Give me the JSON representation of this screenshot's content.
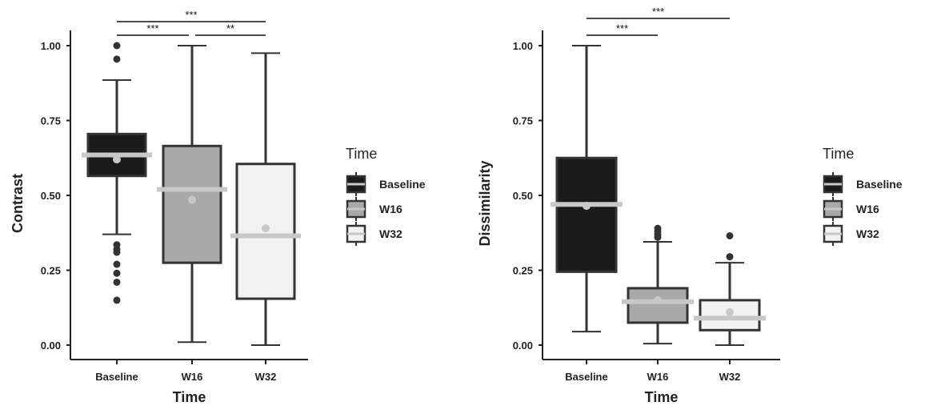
{
  "colors": {
    "Baseline": "#1a1a1a",
    "W16": "#a9a9a9",
    "W32": "#f2f2f2",
    "median_line": "#c8c8c8",
    "mean_dot": "#c8c8c8",
    "whisker": "#333333"
  },
  "chart_data": [
    {
      "type": "box",
      "xlabel": "Time",
      "ylabel": "Contrast",
      "ylim": [
        0,
        1
      ],
      "y_ticks": [
        "0.00",
        "0.25",
        "0.50",
        "0.75",
        "1.00"
      ],
      "y_tick_values": [
        0,
        0.25,
        0.5,
        0.75,
        1.0
      ],
      "categories": [
        "Baseline",
        "W16",
        "W32"
      ],
      "legend": {
        "title": "Time",
        "placement": "right",
        "entries": [
          "Baseline",
          "W16",
          "W32"
        ]
      },
      "boxes": [
        {
          "category": "Baseline",
          "min": 0.37,
          "q1": 0.565,
          "median": 0.635,
          "q3": 0.705,
          "max": 0.885,
          "mean": 0.62,
          "outliers": [
            1.0,
            0.955,
            0.335,
            0.32,
            0.31,
            0.27,
            0.24,
            0.21,
            0.15
          ]
        },
        {
          "category": "W16",
          "min": 0.01,
          "q1": 0.275,
          "median": 0.52,
          "q3": 0.665,
          "max": 1.0,
          "mean": 0.485,
          "outliers": []
        },
        {
          "category": "W32",
          "min": 0.0,
          "q1": 0.155,
          "median": 0.365,
          "q3": 0.605,
          "max": 0.975,
          "mean": 0.39,
          "outliers": []
        }
      ],
      "significance": [
        {
          "from": "Baseline",
          "to": "W32",
          "label": "***"
        },
        {
          "from": "Baseline",
          "to": "W16",
          "label": "***"
        },
        {
          "from": "W16",
          "to": "W32",
          "label": "**"
        }
      ]
    },
    {
      "type": "box",
      "xlabel": "Time",
      "ylabel": "Dissimilarity",
      "ylim": [
        0,
        1
      ],
      "y_ticks": [
        "0.00",
        "0.25",
        "0.50",
        "0.75",
        "1.00"
      ],
      "y_tick_values": [
        0,
        0.25,
        0.5,
        0.75,
        1.0
      ],
      "categories": [
        "Baseline",
        "W16",
        "W32"
      ],
      "legend": {
        "title": "Time",
        "placement": "right",
        "entries": [
          "Baseline",
          "W16",
          "W32"
        ]
      },
      "boxes": [
        {
          "category": "Baseline",
          "min": 0.045,
          "q1": 0.245,
          "median": 0.47,
          "q3": 0.625,
          "max": 1.0,
          "mean": 0.465,
          "outliers": []
        },
        {
          "category": "W16",
          "min": 0.005,
          "q1": 0.075,
          "median": 0.145,
          "q3": 0.19,
          "max": 0.345,
          "mean": 0.15,
          "outliers": [
            0.39,
            0.38,
            0.37,
            0.36
          ]
        },
        {
          "category": "W32",
          "min": 0.0,
          "q1": 0.05,
          "median": 0.09,
          "q3": 0.15,
          "max": 0.275,
          "mean": 0.11,
          "outliers": [
            0.365,
            0.295
          ]
        }
      ],
      "significance": [
        {
          "from": "Baseline",
          "to": "W32",
          "label": "***"
        },
        {
          "from": "Baseline",
          "to": "W16",
          "label": "***"
        }
      ]
    }
  ]
}
